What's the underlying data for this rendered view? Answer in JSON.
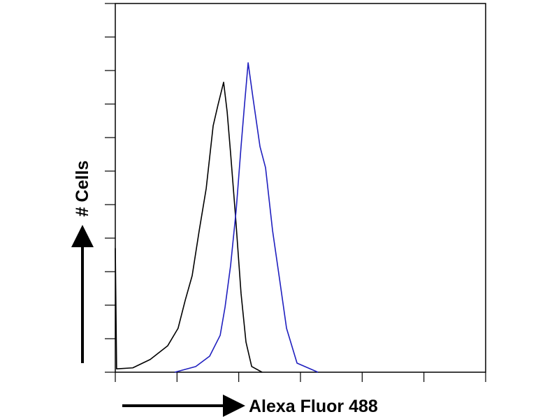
{
  "chart_data": {
    "type": "line",
    "x_label": "Alexa Fluor 488",
    "y_label": "# Cells",
    "xscale": "log",
    "xlim": [
      1,
      1000000
    ],
    "xticks": [
      1,
      10,
      100,
      1000,
      10000,
      100000,
      1000000
    ],
    "ylim": [
      0,
      11
    ],
    "yticks": [
      0,
      1,
      2,
      3,
      4,
      5,
      6,
      7,
      8,
      9,
      10,
      11
    ],
    "grid": false,
    "series": [
      {
        "name": null,
        "color": "#000000",
        "x": [
          1,
          1.05,
          1.92,
          3.68,
          7.07,
          10.4,
          13.6,
          17.6,
          22.9,
          29.7,
          38.5,
          46.2,
          56.9,
          64.9,
          73.9,
          88.7,
          109,
          131,
          162,
          239
        ],
        "values": [
          3.7,
          0.1,
          0.13,
          0.38,
          0.79,
          1.31,
          2.15,
          2.88,
          4.23,
          5.48,
          7.35,
          7.98,
          8.65,
          7.77,
          6.52,
          4.65,
          2.35,
          0.9,
          0.17,
          0
        ]
      },
      {
        "name": null,
        "color": "#1f1fbf",
        "x": [
          9.18,
          20.1,
          33.8,
          50.0,
          60.0,
          73.9,
          91.0,
          109,
          124,
          142,
          170,
          221,
          272,
          353,
          459,
          595,
          880,
          1923
        ],
        "values": [
          0,
          0.17,
          0.48,
          1.1,
          1.94,
          3.19,
          4.85,
          6.73,
          7.98,
          9.23,
          8.19,
          6.73,
          6.1,
          4.23,
          2.77,
          1.31,
          0.27,
          0
        ]
      }
    ]
  }
}
